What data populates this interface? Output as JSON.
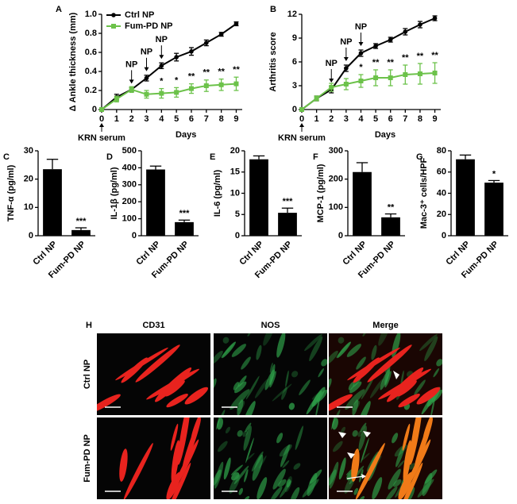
{
  "chart_data": [
    {
      "panel": "A",
      "type": "line",
      "ylabel": "Δ Ankle thickness (mm)",
      "xlabel": "Days",
      "x": [
        0,
        1,
        2,
        3,
        4,
        5,
        6,
        7,
        8,
        9
      ],
      "xlim": [
        0,
        9.4
      ],
      "xticks": [
        0,
        1,
        2,
        3,
        4,
        5,
        6,
        7,
        8,
        9
      ],
      "ylim": [
        0,
        1
      ],
      "yticks": [
        0,
        0.2,
        0.4,
        0.6,
        0.8,
        {
          "value": 1,
          "label": "1.0"
        }
      ],
      "legend": "upper left",
      "series": [
        {
          "name": "Ctrl NP",
          "color": "#000000",
          "marker": "circle",
          "values": [
            0,
            0.13,
            0.21,
            0.33,
            0.46,
            0.55,
            0.61,
            0.7,
            0.79,
            0.9
          ],
          "errors": [
            0,
            0.03,
            0.02,
            0.03,
            0.03,
            0.04,
            0.04,
            0.03,
            0.02,
            0.02
          ]
        },
        {
          "name": "Fum-PD NP",
          "color": "#6cc24a",
          "marker": "square",
          "values": [
            0,
            0.11,
            0.21,
            0.16,
            0.17,
            0.18,
            0.22,
            0.25,
            0.26,
            0.27
          ],
          "errors": [
            0,
            0.03,
            0.03,
            0.04,
            0.05,
            0.05,
            0.05,
            0.06,
            0.06,
            0.07
          ]
        }
      ],
      "np_label": "NP",
      "np_x": [
        2,
        3,
        4
      ],
      "start_label": "KRN serum",
      "significance": {
        "x": [
          4,
          5,
          6,
          7,
          8,
          9
        ],
        "labels": [
          "*",
          "*",
          "**",
          "**",
          "**",
          "**"
        ]
      }
    },
    {
      "panel": "B",
      "type": "line",
      "ylabel": "Arthritis score",
      "xlabel": "Days",
      "x": [
        0,
        1,
        2,
        3,
        4,
        5,
        6,
        7,
        8,
        9
      ],
      "xlim": [
        0,
        9.4
      ],
      "xticks": [
        0,
        1,
        2,
        3,
        4,
        5,
        6,
        7,
        8,
        9
      ],
      "ylim": [
        0,
        12
      ],
      "yticks": [
        0,
        3,
        6,
        9,
        12
      ],
      "series": [
        {
          "color": "#000000",
          "marker": "circle",
          "values": [
            0,
            1.4,
            2.5,
            5.2,
            7.1,
            8.0,
            8.8,
            9.8,
            10.7,
            11.5
          ],
          "errors": [
            0,
            0.3,
            0.4,
            0.4,
            0.4,
            0.3,
            0.3,
            0.4,
            0.4,
            0.3
          ]
        },
        {
          "color": "#6cc24a",
          "marker": "square",
          "values": [
            0,
            1.4,
            2.8,
            3.2,
            3.6,
            4.0,
            4.0,
            4.4,
            4.5,
            4.6
          ],
          "errors": [
            0,
            0.3,
            0.5,
            0.7,
            0.8,
            1.0,
            1.0,
            1.2,
            1.3,
            1.3
          ]
        }
      ],
      "np_label": "NP",
      "np_x": [
        2,
        3,
        4
      ],
      "start_label": "KRN serum",
      "significance": {
        "x": [
          4,
          5,
          6,
          7,
          8,
          9
        ],
        "labels": [
          "*",
          "**",
          "**",
          "**",
          "**",
          "**"
        ]
      }
    },
    {
      "panel": "C",
      "type": "bar",
      "ylabel": "TNF-α (pg/ml)",
      "categories": [
        "Ctrl NP",
        "Fum-PD NP"
      ],
      "values": [
        23.5,
        2
      ],
      "errors": [
        3.5,
        0.8
      ],
      "color": "#000000",
      "ylim": [
        0,
        30
      ],
      "yticks": [
        0,
        10,
        20,
        30
      ],
      "significance": "***"
    },
    {
      "panel": "D",
      "type": "bar",
      "ylabel": "IL-1β (pg/ml)",
      "categories": [
        "Ctrl NP",
        "Fum-PD NP"
      ],
      "values": [
        390,
        80
      ],
      "errors": [
        20,
        12
      ],
      "color": "#000000",
      "ylim": [
        0,
        500
      ],
      "yticks": [
        0,
        100,
        200,
        300,
        400,
        500
      ],
      "significance": "***"
    },
    {
      "panel": "E",
      "type": "bar",
      "ylabel": "IL-6 (pg/ml)",
      "categories": [
        "Ctrl NP",
        "Fum-PD NP"
      ],
      "values": [
        18,
        5.4
      ],
      "errors": [
        0.8,
        1.1
      ],
      "color": "#000000",
      "ylim": [
        0,
        20
      ],
      "yticks": [
        0,
        5,
        10,
        15,
        20
      ],
      "significance": "***"
    },
    {
      "panel": "F",
      "type": "bar",
      "ylabel": "MCP-1 (pg/ml)",
      "categories": [
        "Ctrl NP",
        "Fum-PD NP"
      ],
      "values": [
        225,
        65
      ],
      "errors": [
        33,
        12
      ],
      "color": "#000000",
      "ylim": [
        0,
        300
      ],
      "yticks": [
        0,
        100,
        200,
        300
      ],
      "significance": "**"
    },
    {
      "panel": "G",
      "type": "bar",
      "ylabel": "Mac-3⁺ cells/HPF",
      "categories": [
        "Ctrl NP",
        "Fum-PD NP"
      ],
      "values": [
        72,
        50
      ],
      "errors": [
        4,
        2
      ],
      "color": "#000000",
      "ylim": [
        0,
        80
      ],
      "yticks": [
        0,
        20,
        40,
        60,
        80
      ],
      "significance": "*"
    }
  ],
  "micrographs": {
    "panel": "H",
    "columns": [
      "CD31",
      "NOS",
      "Merge"
    ],
    "rows": [
      "Ctrl NP",
      "Fum-PD NP"
    ]
  }
}
